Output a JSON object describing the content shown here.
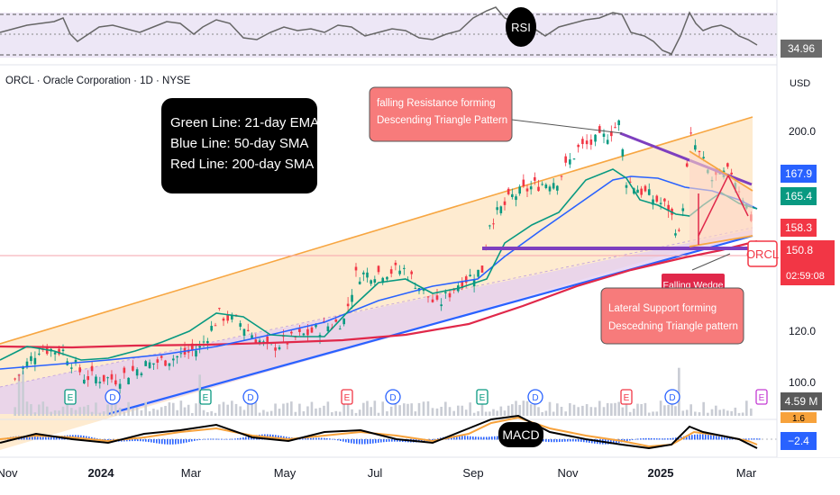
{
  "symbol_header": "ORCL · Oracle Corporation · 1D · NYSE",
  "currency": "USD",
  "colors": {
    "up": "#089981",
    "down": "#f23645",
    "ema21": "#089981",
    "sma50": "#2962ff",
    "sma200": "#e0284a",
    "channel_line": "#f7a642",
    "channel_fill": "#fde3bc",
    "lower_channel_fill": "#e3cdf2",
    "support_purple": "#7e3fbf",
    "note_fill": "#f77b7b",
    "rsi_fill": "#ede7f6",
    "macd_line": "#000000",
    "signal_line": "#f7a23b",
    "hist": "#2962ff"
  },
  "legend_box": {
    "lines": [
      "Green Line: 21-day EMA",
      "Blue Line: 50-day SMA",
      "Red Line: 200-day SMA"
    ]
  },
  "annotations": {
    "resistance": [
      "falling Resistance forming",
      "Descending Triangle Pattern"
    ],
    "falling_wedge": "Falling Wedge",
    "support": [
      "Lateral Support forming",
      "Descedning Triangle pattern"
    ]
  },
  "badges": {
    "rsi": "RSI",
    "macd": "MACD",
    "rsi_value": "34.96",
    "price_168": "167.9",
    "price_165": "165.4",
    "price_158": "158.3",
    "price_151": "150.8",
    "ticker": "ORCL",
    "countdown": "02:59:08",
    "volume": "4.59 M",
    "macd_value": "−2.4",
    "macd_top": "1.6"
  },
  "chart_data": {
    "type": "line",
    "series_kind": "candlestick",
    "y_axis_ticks": [
      200.0,
      120.0,
      100.0
    ],
    "y_axis_tick_labels": [
      "200.0",
      "120.0",
      "100.0"
    ],
    "x_axis_labels": [
      "Nov",
      "2024",
      "Mar",
      "May",
      "Jul",
      "Sep",
      "Nov",
      "2025",
      "Mar"
    ],
    "ylim": [
      90,
      215
    ],
    "close_points": [
      [
        "2023-10-30",
        104
      ],
      [
        "2023-11-15",
        115
      ],
      [
        "2023-12-01",
        114
      ],
      [
        "2023-12-15",
        105
      ],
      [
        "2024-01-05",
        104
      ],
      [
        "2024-01-25",
        109
      ],
      [
        "2024-02-15",
        112
      ],
      [
        "2024-03-01",
        115
      ],
      [
        "2024-03-14",
        127
      ],
      [
        "2024-03-28",
        124
      ],
      [
        "2024-04-15",
        115
      ],
      [
        "2024-05-01",
        118
      ],
      [
        "2024-05-20",
        122
      ],
      [
        "2024-06-05",
        125
      ],
      [
        "2024-06-13",
        141
      ],
      [
        "2024-06-28",
        142
      ],
      [
        "2024-07-15",
        143
      ],
      [
        "2024-07-25",
        137
      ],
      [
        "2024-08-06",
        130
      ],
      [
        "2024-08-20",
        138
      ],
      [
        "2024-09-05",
        143
      ],
      [
        "2024-09-10",
        160
      ],
      [
        "2024-09-25",
        169
      ],
      [
        "2024-10-10",
        173
      ],
      [
        "2024-10-25",
        175
      ],
      [
        "2024-11-08",
        186
      ],
      [
        "2024-11-25",
        190
      ],
      [
        "2024-12-05",
        195
      ],
      [
        "2024-12-10",
        175
      ],
      [
        "2024-12-20",
        171
      ],
      [
        "2025-01-07",
        165
      ],
      [
        "2025-01-14",
        155
      ],
      [
        "2025-01-22",
        190
      ],
      [
        "2025-02-05",
        175
      ],
      [
        "2025-02-18",
        178
      ],
      [
        "2025-02-28",
        166
      ],
      [
        "2025-03-06",
        157
      ]
    ],
    "indicator_values": {
      "ema21_last": 165.4,
      "sma50_last": 167.9,
      "sma200_last": 150.8,
      "last_close": 158.3,
      "rsi_last": 34.96,
      "volume_last": "4.59 M",
      "macd_last": -2.4
    }
  }
}
